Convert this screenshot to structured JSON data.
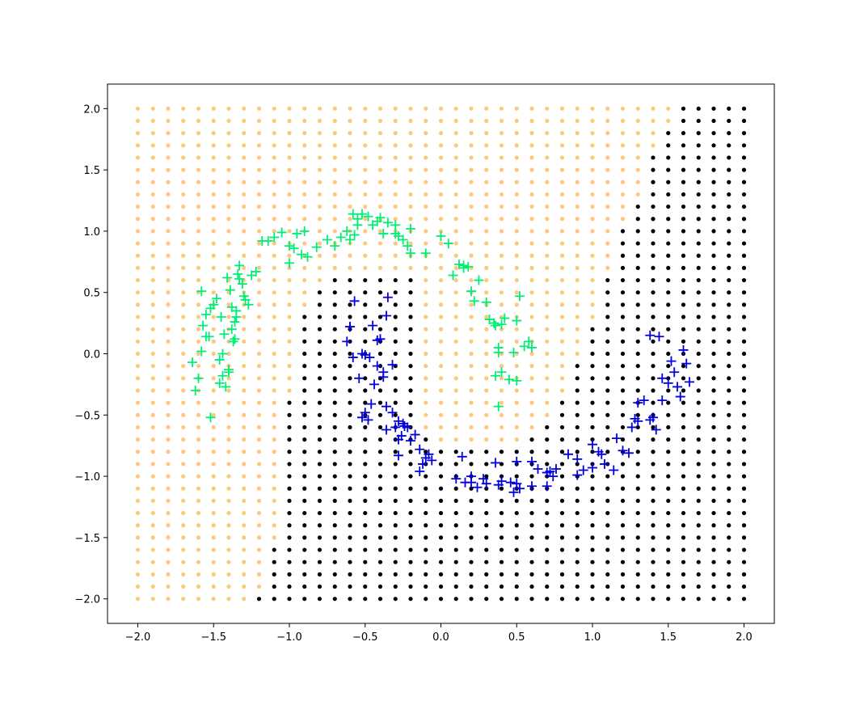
{
  "chart_data": {
    "type": "scatter",
    "xlim": [
      -2.2,
      2.2
    ],
    "ylim": [
      -2.2,
      2.2
    ],
    "x_ticks": [
      -2.0,
      -1.5,
      -1.0,
      -0.5,
      0.0,
      0.5,
      1.0,
      1.5,
      2.0
    ],
    "x_tick_labels": [
      "−2.0",
      "−1.5",
      "−1.0",
      "−0.5",
      "0.0",
      "0.5",
      "1.0",
      "1.5",
      "2.0"
    ],
    "y_ticks": [
      -2.0,
      -1.5,
      -1.0,
      -0.5,
      0.0,
      0.5,
      1.0,
      1.5,
      2.0
    ],
    "y_tick_labels": [
      "−2.0",
      "−1.5",
      "−1.0",
      "−0.5",
      "0.0",
      "0.5",
      "1.0",
      "1.5",
      "2.0"
    ],
    "grid": false,
    "colors": {
      "region_0": "#ffc77d",
      "region_1": "#000000",
      "class_0": "#00ee76",
      "class_1": "#0000dd"
    },
    "decision_grid": {
      "x_start": -2.0,
      "x_step": 0.1,
      "x_count": 41,
      "y_start": -2.0,
      "y_step": 0.1,
      "y_count": 41,
      "class1_rows_ranges": [
        [
          -1.2,
          2.0
        ],
        [
          -1.1,
          2.0
        ],
        [
          -1.1,
          2.0
        ],
        [
          -1.1,
          2.0
        ],
        [
          -1.1,
          2.0
        ],
        [
          -1.0,
          2.0
        ],
        [
          -1.0,
          2.0
        ],
        [
          -1.0,
          2.0
        ],
        [
          -1.0,
          2.0
        ],
        [
          -1.0,
          2.0
        ],
        [
          -1.0,
          2.0
        ],
        [
          -1.0,
          2.0
        ],
        [
          -1.0,
          2.0
        ],
        [
          -1.0,
          -0.1,
          0.6,
          2.0
        ],
        [
          -1.0,
          -0.2,
          0.7,
          2.0
        ],
        [
          -1.0,
          -0.2,
          0.8,
          2.0
        ],
        [
          -1.0,
          -0.2,
          0.8,
          2.0
        ],
        [
          -0.9,
          -0.2,
          0.9,
          2.0
        ],
        [
          -0.9,
          -0.2,
          0.9,
          2.0
        ],
        [
          -0.9,
          -0.2,
          0.9,
          2.0
        ],
        [
          -0.9,
          -0.2,
          1.0,
          2.0
        ],
        [
          -0.9,
          -0.2,
          1.0,
          2.0
        ],
        [
          -0.9,
          -0.2,
          1.0,
          2.0
        ],
        [
          -0.9,
          -0.2,
          1.1,
          2.0
        ],
        [
          -0.8,
          -0.2,
          1.1,
          2.0
        ],
        [
          -0.8,
          -0.2,
          1.1,
          2.0
        ],
        [
          -0.7,
          -0.2,
          1.1,
          2.0
        ],
        [
          1.2,
          2.0
        ],
        [
          1.2,
          2.0
        ],
        [
          1.2,
          2.0
        ],
        [
          1.2,
          2.0
        ],
        [
          1.3,
          2.0
        ],
        [
          1.3,
          2.0
        ],
        [
          1.4,
          2.0
        ],
        [
          1.4,
          2.0
        ],
        [
          1.4,
          2.0
        ],
        [
          1.4,
          2.0
        ],
        [
          1.5,
          2.0
        ],
        [
          1.5,
          2.0
        ],
        [
          1.6,
          2.0
        ],
        [
          1.6,
          2.0
        ]
      ]
    },
    "series": [
      {
        "marker": "+",
        "x": [
          -1.64,
          -1.6,
          -1.62,
          -1.57,
          -1.55,
          -1.52,
          -1.53,
          -1.58,
          -1.5,
          -1.48,
          -1.45,
          -1.43,
          -1.41,
          -1.39,
          -1.38,
          -1.36,
          -1.35,
          -1.34,
          -1.33,
          -1.31,
          -1.29,
          -1.27,
          -1.25,
          -1.42,
          -1.4,
          -1.37,
          -1.36,
          -1.44,
          -1.46,
          -1.38,
          -1.35,
          -1.33,
          -1.3,
          -1.22,
          -1.18,
          -1.14,
          -1.1,
          -1.05,
          -1.0,
          -0.95,
          -0.92,
          -0.88,
          -0.82,
          -0.75,
          -0.7,
          -0.66,
          -0.62,
          -0.58,
          -0.55,
          -0.52,
          -0.48,
          -0.45,
          -0.42,
          -0.38,
          -0.35,
          -0.3,
          -0.28,
          -0.25,
          -0.22,
          -0.2,
          -0.1,
          0.0,
          0.05,
          0.08,
          0.12,
          0.15,
          0.18,
          0.2,
          0.22,
          0.25,
          0.3,
          0.32,
          0.35,
          0.36,
          0.38,
          0.4,
          0.42,
          0.45,
          0.5,
          0.52,
          0.55,
          0.58,
          0.6,
          0.38,
          0.4,
          0.5,
          0.48,
          -1.52,
          -1.46,
          -1.44,
          -1.4,
          -1.0,
          -0.9,
          -0.97,
          -0.6,
          -0.57,
          -0.55,
          -0.4,
          -0.3,
          -0.2,
          0.15,
          0.38,
          0.36,
          -1.58,
          -1.55
        ],
        "y": [
          -0.07,
          -0.2,
          -0.3,
          0.23,
          0.32,
          0.37,
          0.14,
          0.02,
          0.4,
          0.45,
          0.3,
          0.16,
          0.62,
          0.52,
          0.38,
          0.12,
          0.3,
          0.65,
          0.72,
          0.57,
          0.44,
          0.4,
          0.64,
          -0.27,
          -0.13,
          0.1,
          0.26,
          -0.18,
          -0.24,
          0.2,
          0.35,
          0.61,
          0.47,
          0.67,
          0.92,
          0.92,
          0.95,
          0.99,
          0.88,
          0.98,
          0.81,
          0.79,
          0.87,
          0.93,
          0.88,
          0.95,
          1.0,
          1.14,
          1.1,
          1.14,
          1.12,
          1.05,
          1.08,
          0.98,
          1.07,
          1.05,
          0.96,
          0.93,
          0.88,
          0.82,
          0.82,
          0.96,
          0.9,
          0.64,
          0.73,
          0.7,
          0.71,
          0.51,
          0.43,
          0.6,
          0.42,
          0.28,
          0.25,
          0.23,
          0.05,
          -0.15,
          0.29,
          -0.21,
          0.27,
          0.47,
          0.06,
          0.1,
          0.05,
          -0.43,
          0.24,
          -0.22,
          0.01,
          -0.52,
          -0.05,
          0.0,
          -0.15,
          0.74,
          1.0,
          0.86,
          0.93,
          0.97,
          1.05,
          1.11,
          0.98,
          1.02,
          0.72,
          0.01,
          -0.18,
          0.51,
          0.14
        ]
      },
      {
        "marker": "+",
        "x": [
          -0.62,
          -0.57,
          -0.6,
          -0.52,
          -0.5,
          -0.47,
          -0.45,
          -0.42,
          -0.4,
          -0.38,
          -0.36,
          -0.35,
          -0.32,
          -0.3,
          -0.28,
          -0.26,
          -0.25,
          -0.22,
          -0.2,
          -0.17,
          -0.14,
          -0.12,
          -0.1,
          -0.08,
          -0.06,
          0.14,
          0.16,
          0.2,
          0.24,
          0.3,
          0.36,
          0.4,
          0.46,
          0.5,
          0.52,
          0.6,
          0.64,
          0.7,
          0.74,
          0.84,
          0.9,
          0.94,
          1.0,
          1.04,
          1.08,
          1.14,
          1.2,
          1.26,
          1.3,
          1.34,
          1.38,
          1.4,
          1.42,
          1.46,
          1.5,
          1.54,
          1.56,
          1.58,
          1.6,
          1.64,
          1.38,
          1.44,
          1.28,
          1.24,
          1.16,
          1.06,
          1.0,
          0.9,
          0.76,
          0.72,
          -0.54,
          -0.5,
          -0.46,
          -0.42,
          -0.36,
          -0.32,
          -0.24,
          -0.58,
          -0.6,
          -0.38,
          -0.44,
          -0.52,
          -0.48,
          -0.28,
          -0.36,
          -0.28,
          -0.14,
          0.38,
          0.48,
          0.6,
          0.7,
          0.28,
          0.2,
          0.5,
          0.1,
          1.3,
          1.46,
          1.52,
          1.62
        ],
        "y": [
          0.1,
          0.43,
          0.22,
          0.0,
          -0.01,
          -0.03,
          0.23,
          -0.1,
          0.12,
          -0.19,
          0.31,
          0.46,
          -0.09,
          -0.6,
          -0.55,
          -0.67,
          -0.57,
          -0.6,
          -0.71,
          -0.66,
          -0.78,
          -0.9,
          -0.85,
          -0.82,
          -0.87,
          -0.84,
          -1.05,
          -1.05,
          -1.09,
          -1.06,
          -0.89,
          -1.04,
          -1.05,
          -0.88,
          -1.1,
          -0.88,
          -0.94,
          -0.97,
          -1.0,
          -0.82,
          -0.86,
          -0.95,
          -0.93,
          -0.8,
          -0.9,
          -0.95,
          -0.79,
          -0.6,
          -0.4,
          -0.38,
          -0.54,
          -0.52,
          -0.62,
          -0.2,
          -0.24,
          -0.15,
          -0.27,
          -0.35,
          0.03,
          -0.23,
          0.15,
          0.14,
          -0.53,
          -0.81,
          -0.69,
          -0.82,
          -0.74,
          -0.99,
          -0.94,
          -0.96,
          -0.2,
          -0.48,
          -0.41,
          0.11,
          -0.43,
          -0.48,
          -0.59,
          -0.03,
          0.22,
          -0.15,
          -0.25,
          -0.52,
          -0.54,
          -0.7,
          -0.62,
          -0.83,
          -0.96,
          -1.07,
          -1.13,
          -1.08,
          -1.08,
          -1.02,
          -1.0,
          -1.06,
          -1.02,
          -0.55,
          -0.38,
          -0.06,
          -0.08
        ]
      }
    ]
  }
}
